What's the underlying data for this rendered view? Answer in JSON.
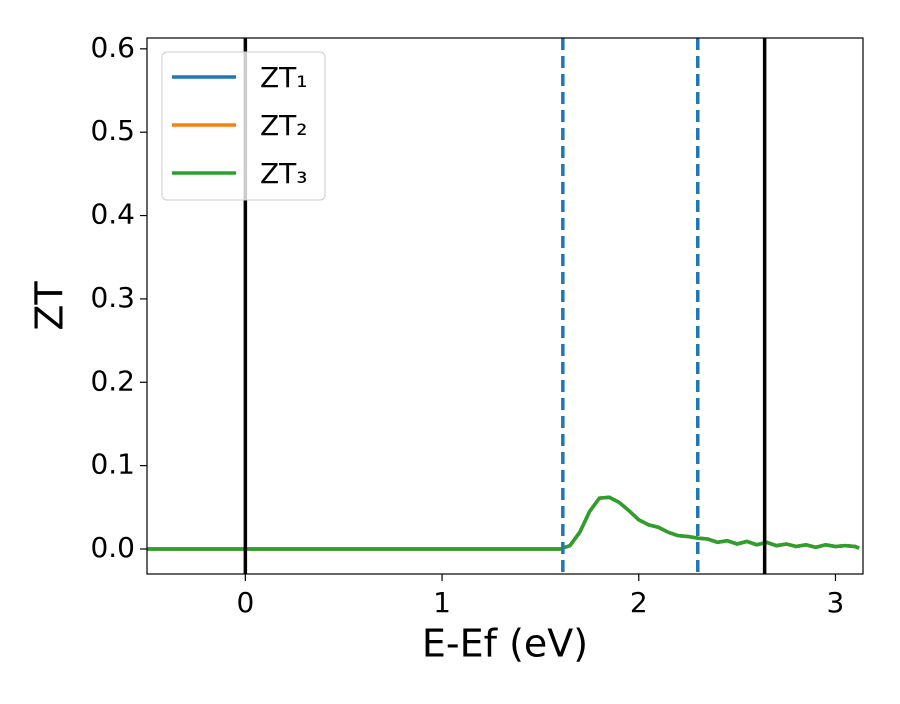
{
  "chart_data": {
    "type": "line",
    "x_label": "E-Ef (eV)",
    "y_label": "ZT",
    "x": [
      -0.5,
      1.6,
      1.65,
      1.7,
      1.75,
      1.8,
      1.85,
      1.9,
      1.95,
      2.0,
      2.05,
      2.1,
      2.15,
      2.2,
      2.25,
      2.3,
      2.35,
      2.4,
      2.45,
      2.5,
      2.55,
      2.6,
      2.65,
      2.7,
      2.75,
      2.8,
      2.85,
      2.9,
      2.95,
      3.0,
      3.05,
      3.1,
      3.12
    ],
    "series": [
      {
        "name": "ZT₁",
        "color": "#1f77b4",
        "values": [
          0,
          0,
          0.004,
          0.02,
          0.045,
          0.061,
          0.062,
          0.056,
          0.046,
          0.035,
          0.029,
          0.026,
          0.02,
          0.016,
          0.015,
          0.013,
          0.012,
          0.008,
          0.01,
          0.006,
          0.009,
          0.005,
          0.008,
          0.004,
          0.006,
          0.003,
          0.005,
          0.002,
          0.005,
          0.003,
          0.004,
          0.003,
          0.001
        ]
      },
      {
        "name": "ZT₂",
        "color": "#ff7f0e",
        "values": [
          0,
          0,
          0.004,
          0.02,
          0.045,
          0.061,
          0.062,
          0.056,
          0.046,
          0.035,
          0.029,
          0.026,
          0.02,
          0.016,
          0.015,
          0.013,
          0.012,
          0.008,
          0.01,
          0.006,
          0.009,
          0.005,
          0.008,
          0.004,
          0.006,
          0.003,
          0.005,
          0.002,
          0.005,
          0.003,
          0.004,
          0.003,
          0.001
        ]
      },
      {
        "name": "ZT₃",
        "color": "#2ca02c",
        "values": [
          0,
          0,
          0.004,
          0.02,
          0.045,
          0.061,
          0.062,
          0.056,
          0.046,
          0.035,
          0.029,
          0.026,
          0.02,
          0.016,
          0.015,
          0.013,
          0.012,
          0.008,
          0.01,
          0.006,
          0.009,
          0.005,
          0.008,
          0.004,
          0.006,
          0.003,
          0.005,
          0.002,
          0.005,
          0.003,
          0.004,
          0.003,
          0.001
        ]
      }
    ],
    "vlines": [
      {
        "x": 0,
        "color": "#000000",
        "style": "solid"
      },
      {
        "x": 2.64,
        "color": "#000000",
        "style": "solid"
      },
      {
        "x": 1.614,
        "color": "#1f77b4",
        "style": "dashed"
      },
      {
        "x": 2.3,
        "color": "#1f77b4",
        "style": "dashed"
      }
    ],
    "xlim": [
      -0.5,
      3.14
    ],
    "ylim": [
      -0.03,
      0.613
    ],
    "xticks": [
      0,
      1,
      2,
      3
    ],
    "yticks": [
      {
        "value": 0,
        "label": "0.0"
      },
      0.1,
      0.2,
      0.3,
      0.4,
      0.5,
      0.6
    ],
    "legend": "upper left"
  }
}
